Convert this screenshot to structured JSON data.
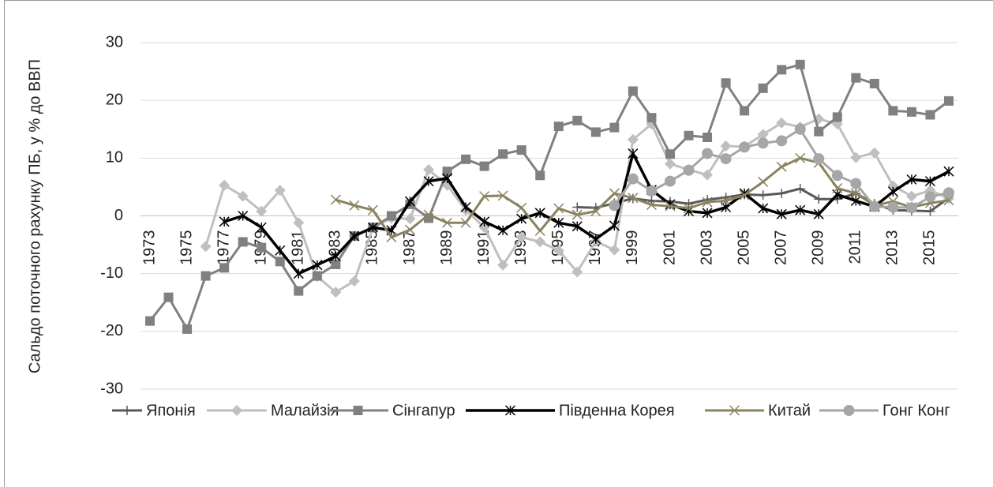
{
  "chart_data": {
    "type": "line",
    "y_label": "Сальдо поточного рахунку ПБ, у % до ВВП",
    "categories": [
      "1973",
      null,
      "1975",
      null,
      "1977",
      null,
      "1979",
      null,
      "1981",
      null,
      "1983",
      null,
      "1985",
      null,
      "1987",
      null,
      "1989",
      null,
      "1991",
      null,
      "1993",
      null,
      "1995",
      null,
      "1997",
      null,
      "1999",
      null,
      "2001",
      null,
      "2003",
      null,
      "2005",
      null,
      "2007",
      null,
      "2009",
      null,
      "2011",
      null,
      "2013",
      null,
      "2015",
      null
    ],
    "ylim": [
      -30,
      30
    ],
    "yticks": [
      -30,
      -20,
      -10,
      0,
      10,
      20,
      30
    ],
    "grid": true,
    "series": [
      {
        "name": "Японія",
        "color": "#595959",
        "marker": "plus",
        "values": [
          null,
          null,
          null,
          null,
          null,
          null,
          null,
          null,
          null,
          null,
          null,
          null,
          null,
          null,
          null,
          null,
          null,
          null,
          null,
          null,
          null,
          null,
          null,
          1.5,
          1.4,
          2.2,
          3.0,
          2.6,
          2.5,
          2.1,
          2.8,
          3.2,
          3.7,
          3.6,
          3.9,
          4.7,
          2.9,
          2.9,
          3.9,
          2.1,
          1.0,
          0.9,
          0.8,
          3.1
        ]
      },
      {
        "name": "Малайзія",
        "color": "#bfbfbf",
        "marker": "diamond",
        "values": [
          null,
          null,
          null,
          -5.3,
          5.3,
          3.4,
          0.8,
          4.4,
          -1.2,
          -10.5,
          -13.2,
          -11.3,
          -2.0,
          -0.4,
          -0.5,
          8.0,
          5.3,
          1.0,
          -2.0,
          -8.5,
          -3.7,
          -4.5,
          -6.0,
          -9.7,
          -4.4,
          -5.9,
          13.2,
          15.9,
          9.0,
          8.0,
          7.1,
          12.1,
          12.0,
          14.1,
          16.1,
          15.4,
          16.8,
          15.9,
          10.1,
          10.9,
          5.2,
          3.4,
          4.4,
          3.0
        ]
      },
      {
        "name": "Сінгапур",
        "color": "#808080",
        "marker": "square",
        "values": [
          -18.2,
          -14.1,
          -19.6,
          -10.4,
          -9.0,
          -4.5,
          -5.5,
          -7.9,
          -13.0,
          -10.4,
          -8.4,
          -3.5,
          -2.0,
          0.0,
          2.0,
          -0.4,
          7.7,
          9.8,
          8.6,
          10.7,
          11.4,
          7.0,
          15.5,
          16.5,
          14.5,
          15.3,
          21.6,
          17.0,
          10.7,
          13.9,
          13.6,
          23.0,
          18.2,
          22.1,
          25.3,
          26.2,
          14.6,
          17.1,
          23.9,
          22.9,
          18.2,
          18.0,
          17.5,
          19.9
        ]
      },
      {
        "name": "Південна Корея",
        "color": "#000000",
        "marker": "asterisk",
        "values": [
          null,
          null,
          null,
          null,
          -1,
          0,
          -2,
          -6,
          -10,
          -8.5,
          -7,
          -3.5,
          -2,
          -2.5,
          2.5,
          6,
          6.5,
          1.5,
          -1,
          -2.5,
          -0.5,
          0.5,
          -1.2,
          -1.8,
          -4,
          -1.7,
          10.8,
          4.5,
          2,
          0.8,
          0.5,
          1.5,
          3.9,
          1.3,
          0.3,
          1,
          0.3,
          3.7,
          2.6,
          1.6,
          4.2,
          6.3,
          6,
          7.7
        ]
      },
      {
        "name": "Китай",
        "color": "#8a8360",
        "marker": "x",
        "values": [
          null,
          null,
          null,
          null,
          null,
          null,
          null,
          null,
          null,
          null,
          2.8,
          1.8,
          1.0,
          -3.7,
          -2.4,
          0.2,
          -1.2,
          -1.2,
          3.4,
          3.5,
          1.4,
          -2.6,
          1.3,
          0.2,
          0.8,
          3.9,
          3.1,
          1.9,
          1.7,
          1.3,
          2.4,
          2.6,
          3.6,
          5.9,
          8.5,
          10.0,
          9.2,
          4.8,
          3.9,
          1.8,
          2.5,
          1.5,
          2.2,
          2.7
        ]
      },
      {
        "name": "Гонг Конг",
        "color": "#a6a6a6",
        "marker": "circle",
        "values": [
          null,
          null,
          null,
          null,
          null,
          null,
          null,
          null,
          null,
          null,
          null,
          null,
          null,
          null,
          null,
          null,
          null,
          null,
          null,
          null,
          null,
          null,
          null,
          null,
          null,
          1.8,
          6.4,
          4.3,
          6.0,
          7.9,
          10.8,
          9.9,
          11.9,
          12.6,
          13.0,
          15.0,
          9.9,
          7.0,
          5.6,
          1.6,
          1.5,
          1.4,
          3.3,
          4.0
        ]
      }
    ]
  }
}
